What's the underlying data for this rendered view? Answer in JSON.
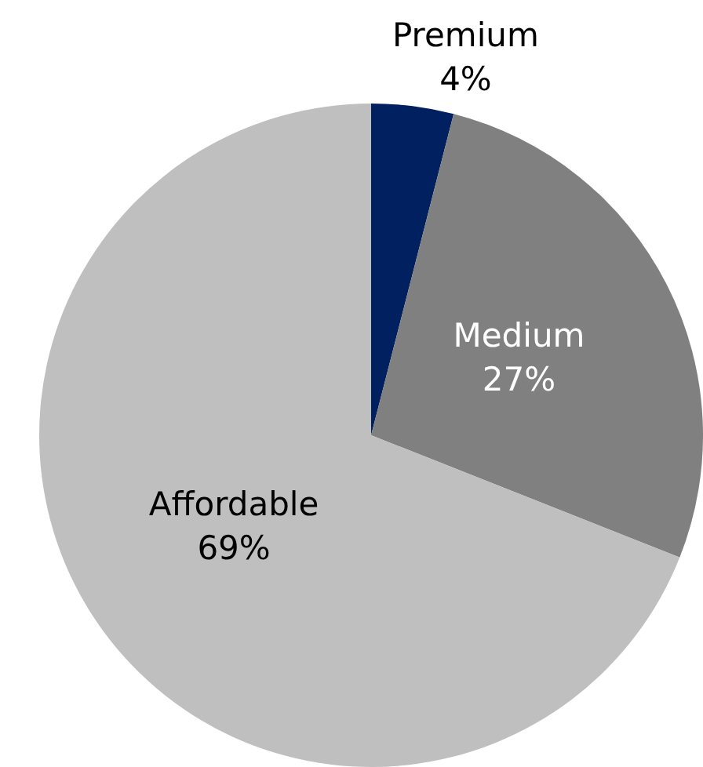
{
  "chart_data": {
    "type": "pie",
    "categories": [
      "Premium",
      "Medium",
      "Affordable"
    ],
    "values": [
      4,
      27,
      69
    ],
    "colors": [
      "#002060",
      "#808080",
      "#bfbfbf"
    ],
    "value_labels": [
      "4%",
      "27%",
      "69%"
    ]
  }
}
